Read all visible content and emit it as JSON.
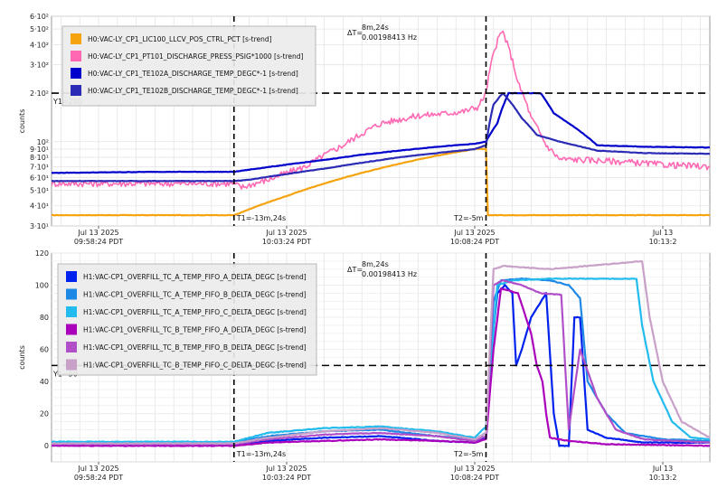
{
  "chart_data": [
    {
      "type": "line",
      "ylabel": "counts",
      "scale": "log",
      "ylim": [
        30,
        600
      ],
      "xlim": [
        -2.5,
        32.5
      ],
      "grid": true,
      "legend_position": "top-left",
      "y_ticks": [
        {
          "label": "3·10¹",
          "value": 30
        },
        {
          "label": "4·10¹",
          "value": 40
        },
        {
          "label": "5·10¹",
          "value": 50
        },
        {
          "label": "6·10¹",
          "value": 60
        },
        {
          "label": "7·10¹",
          "value": 70
        },
        {
          "label": "8·10¹",
          "value": 80
        },
        {
          "label": "9·10¹",
          "value": 90
        },
        {
          "label": "10²",
          "value": 100
        },
        {
          "label": "2·10²",
          "value": 200
        },
        {
          "label": "3·10²",
          "value": 300
        },
        {
          "label": "4·10²",
          "value": 400
        },
        {
          "label": "5·10²",
          "value": 500
        },
        {
          "label": "6·10²",
          "value": 600
        }
      ],
      "x_ticks": [
        {
          "value": 0,
          "line1": "Jul 13 2025",
          "line2": "09:58:24 PDT"
        },
        {
          "value": 10,
          "line1": "Jul 13 2025",
          "line2": "10:03:24 PDT"
        },
        {
          "value": 20,
          "line1": "Jul 13 2025",
          "line2": "10:08:24 PDT"
        },
        {
          "value": 30,
          "line1": "Jul 13",
          "line2": "10:13:2"
        }
      ],
      "cursors": {
        "y1": {
          "value": 200,
          "label": "Y1=200"
        },
        "t1": {
          "x": 7.2,
          "label": "T1=-13m,24s"
        },
        "t2": {
          "x": 20.6,
          "label": "T2=-5m"
        },
        "delta": {
          "line1": "ΔT=",
          "value1": "8m,24s",
          "value2": "0.00198413 Hz"
        }
      },
      "series": [
        {
          "name": "H0:VAC-LY_CP1_LIC100_LLCV_POS_CTRL_PCT [s-trend]",
          "color": "#f5a30f",
          "points": [
            [
              -2.5,
              35
            ],
            [
              7.2,
              35
            ],
            [
              7.5,
              36
            ],
            [
              8.5,
              40
            ],
            [
              10,
              46
            ],
            [
              12,
              55
            ],
            [
              14,
              64
            ],
            [
              16,
              73
            ],
            [
              18,
              82
            ],
            [
              20,
              90
            ],
            [
              20.6,
              90
            ],
            [
              20.7,
              35
            ],
            [
              32.5,
              35
            ]
          ]
        },
        {
          "name": "H0:VAC-LY_CP1_PT101_DISCHARGE_PRESS_PSIG*1000 [s-trend]",
          "color": "#ff69b4",
          "noise": true,
          "points": [
            [
              -2.5,
              55
            ],
            [
              3,
              55
            ],
            [
              7.2,
              55
            ],
            [
              7.6,
              52
            ],
            [
              9,
              58
            ],
            [
              11,
              70
            ],
            [
              13,
              95
            ],
            [
              15,
              130
            ],
            [
              17,
              145
            ],
            [
              18.5,
              150
            ],
            [
              19.5,
              155
            ],
            [
              20.2,
              165
            ],
            [
              20.6,
              200
            ],
            [
              21.0,
              350
            ],
            [
              21.3,
              450
            ],
            [
              21.5,
              480
            ],
            [
              21.8,
              380
            ],
            [
              22.3,
              230
            ],
            [
              23,
              140
            ],
            [
              23.8,
              95
            ],
            [
              24.5,
              78
            ],
            [
              26,
              77
            ],
            [
              28,
              75
            ],
            [
              30,
              72
            ],
            [
              32.5,
              70
            ]
          ]
        },
        {
          "name": "H0:VAC-LY_CP1_TE102A_DISCHARGE_TEMP_DEGC*-1 [s-trend]",
          "color": "#0000cc",
          "points": [
            [
              -2.5,
              64
            ],
            [
              3,
              65
            ],
            [
              7.2,
              65
            ],
            [
              8,
              67
            ],
            [
              10,
              72
            ],
            [
              12,
              77
            ],
            [
              14,
              83
            ],
            [
              16,
              88
            ],
            [
              18,
              93
            ],
            [
              20,
              97
            ],
            [
              20.6,
              100
            ],
            [
              21.2,
              130
            ],
            [
              21.8,
              200
            ],
            [
              23.5,
              200
            ],
            [
              24.2,
              150
            ],
            [
              25,
              130
            ],
            [
              26.5,
              95
            ],
            [
              29,
              93
            ],
            [
              32.5,
              92
            ]
          ]
        },
        {
          "name": "H0:VAC-LY_CP1_TE102B_DISCHARGE_TEMP_DEGC*-1 [s-trend]",
          "color": "#2b2bb5",
          "points": [
            [
              -2.5,
              57
            ],
            [
              3,
              57
            ],
            [
              7.2,
              57
            ],
            [
              8,
              58
            ],
            [
              10,
              63
            ],
            [
              12,
              68
            ],
            [
              14,
              74
            ],
            [
              16,
              80
            ],
            [
              18,
              85
            ],
            [
              20,
              90
            ],
            [
              20.6,
              95
            ],
            [
              21.0,
              170
            ],
            [
              21.5,
              200
            ],
            [
              22.5,
              140
            ],
            [
              23.3,
              110
            ],
            [
              24.5,
              100
            ],
            [
              26.5,
              88
            ],
            [
              29,
              85
            ],
            [
              32.5,
              84
            ]
          ]
        }
      ]
    },
    {
      "type": "line",
      "ylabel": "counts",
      "scale": "linear",
      "ylim": [
        -10,
        120
      ],
      "xlim": [
        -2.5,
        32.5
      ],
      "grid": true,
      "legend_position": "top-left",
      "y_ticks": [
        {
          "label": "0",
          "value": 0
        },
        {
          "label": "20",
          "value": 20
        },
        {
          "label": "40",
          "value": 40
        },
        {
          "label": "60",
          "value": 60
        },
        {
          "label": "80",
          "value": 80
        },
        {
          "label": "100",
          "value": 100
        },
        {
          "label": "120",
          "value": 120
        }
      ],
      "x_ticks": [
        {
          "value": 0,
          "line1": "Jul 13 2025",
          "line2": "09:58:24 PDT"
        },
        {
          "value": 10,
          "line1": "Jul 13 2025",
          "line2": "10:03:24 PDT"
        },
        {
          "value": 20,
          "line1": "Jul 13 2025",
          "line2": "10:08:24 PDT"
        },
        {
          "value": 30,
          "line1": "Jul 13",
          "line2": "10:13:2"
        }
      ],
      "cursors": {
        "y1": {
          "value": 50,
          "label": "Y1=50"
        },
        "t1": {
          "x": 7.2,
          "label": "T1=-13m,24s"
        },
        "t2": {
          "x": 20.6,
          "label": "T2=-5m"
        },
        "delta": {
          "line1": "ΔT=",
          "value1": "8m,24s",
          "value2": "0.00198413 Hz"
        }
      },
      "series": [
        {
          "name": "H1:VAC-CP1_OVERFILL_TC_A_TEMP_FIFO_A_DELTA_DEGC [s-trend]",
          "color": "#0022ee",
          "points": [
            [
              -2.5,
              1
            ],
            [
              7.2,
              1
            ],
            [
              9,
              3
            ],
            [
              12,
              5
            ],
            [
              15,
              6
            ],
            [
              18,
              3
            ],
            [
              20,
              2
            ],
            [
              20.6,
              5
            ],
            [
              20.9,
              60
            ],
            [
              21.2,
              95
            ],
            [
              21.6,
              100
            ],
            [
              22.0,
              95
            ],
            [
              22.2,
              50
            ],
            [
              22.5,
              60
            ],
            [
              23.0,
              80
            ],
            [
              23.8,
              95
            ],
            [
              24.2,
              20
            ],
            [
              24.5,
              0
            ],
            [
              25.0,
              0
            ],
            [
              25.3,
              80
            ],
            [
              25.6,
              80
            ],
            [
              26.0,
              10
            ],
            [
              27,
              5
            ],
            [
              29,
              2
            ],
            [
              32.5,
              2
            ]
          ]
        },
        {
          "name": "H1:VAC-CP1_OVERFILL_TC_A_TEMP_FIFO_B_DELTA_DEGC [s-trend]",
          "color": "#1e88e5",
          "points": [
            [
              -2.5,
              2
            ],
            [
              7.2,
              2
            ],
            [
              9,
              6
            ],
            [
              12,
              9
            ],
            [
              15,
              10
            ],
            [
              18,
              6
            ],
            [
              20,
              4
            ],
            [
              20.6,
              8
            ],
            [
              21.0,
              90
            ],
            [
              21.4,
              103
            ],
            [
              22.5,
              104
            ],
            [
              24,
              103
            ],
            [
              25,
              100
            ],
            [
              25.6,
              92
            ],
            [
              26.0,
              40
            ],
            [
              27,
              20
            ],
            [
              28,
              8
            ],
            [
              30,
              4
            ],
            [
              32.5,
              3
            ]
          ]
        },
        {
          "name": "H1:VAC-CP1_OVERFILL_TC_A_TEMP_FIFO_C_DELTA_DEGC [s-trend]",
          "color": "#22bbee",
          "points": [
            [
              -2.5,
              2.5
            ],
            [
              7.2,
              2.5
            ],
            [
              9,
              8
            ],
            [
              12,
              11
            ],
            [
              15,
              12
            ],
            [
              18,
              9
            ],
            [
              20,
              5
            ],
            [
              20.6,
              12
            ],
            [
              21.2,
              100
            ],
            [
              22,
              103
            ],
            [
              24,
              104
            ],
            [
              27,
              104
            ],
            [
              28.6,
              104
            ],
            [
              28.9,
              75
            ],
            [
              29.5,
              40
            ],
            [
              30.5,
              15
            ],
            [
              31.5,
              5
            ],
            [
              32.5,
              4
            ]
          ]
        },
        {
          "name": "H1:VAC-CP1_OVERFILL_TC_B_TEMP_FIFO_A_DELTA_DEGC [s-trend]",
          "color": "#aa00bb",
          "points": [
            [
              -2.5,
              0
            ],
            [
              7.2,
              0
            ],
            [
              9,
              2
            ],
            [
              12,
              3
            ],
            [
              15,
              4
            ],
            [
              18,
              3
            ],
            [
              20,
              2
            ],
            [
              20.6,
              4
            ],
            [
              21.0,
              60
            ],
            [
              21.4,
              98
            ],
            [
              22.3,
              95
            ],
            [
              23.0,
              70
            ],
            [
              23.3,
              50
            ],
            [
              23.6,
              40
            ],
            [
              23.8,
              20
            ],
            [
              24,
              5
            ],
            [
              25,
              3
            ],
            [
              27,
              1
            ],
            [
              32.5,
              0
            ]
          ]
        },
        {
          "name": "H1:VAC-CP1_OVERFILL_TC_B_TEMP_FIFO_B_DELTA_DEGC [s-trend]",
          "color": "#b04fc8",
          "points": [
            [
              -2.5,
              1
            ],
            [
              7.2,
              1
            ],
            [
              9,
              4
            ],
            [
              12,
              7
            ],
            [
              15,
              8
            ],
            [
              18,
              6
            ],
            [
              20,
              3
            ],
            [
              20.6,
              6
            ],
            [
              21.0,
              100
            ],
            [
              21.5,
              103
            ],
            [
              22.5,
              100
            ],
            [
              23.5,
              95
            ],
            [
              24.6,
              94
            ],
            [
              25.0,
              10
            ],
            [
              25.6,
              60
            ],
            [
              26.5,
              30
            ],
            [
              27.5,
              10
            ],
            [
              29,
              4
            ],
            [
              32.5,
              2
            ]
          ]
        },
        {
          "name": "H1:VAC-CP1_OVERFILL_TC_B_TEMP_FIFO_C_DELTA_DEGC [s-trend]",
          "color": "#c8a0c8",
          "points": [
            [
              -2.5,
              1.5
            ],
            [
              7.2,
              1.5
            ],
            [
              9,
              5
            ],
            [
              12,
              9
            ],
            [
              15,
              11
            ],
            [
              18,
              8
            ],
            [
              20,
              4
            ],
            [
              20.6,
              8
            ],
            [
              21.0,
              110
            ],
            [
              21.5,
              112
            ],
            [
              24,
              110
            ],
            [
              26,
              112
            ],
            [
              28,
              114
            ],
            [
              28.9,
              115
            ],
            [
              29.3,
              80
            ],
            [
              30,
              40
            ],
            [
              31,
              15
            ],
            [
              32.5,
              5
            ]
          ]
        }
      ]
    }
  ]
}
